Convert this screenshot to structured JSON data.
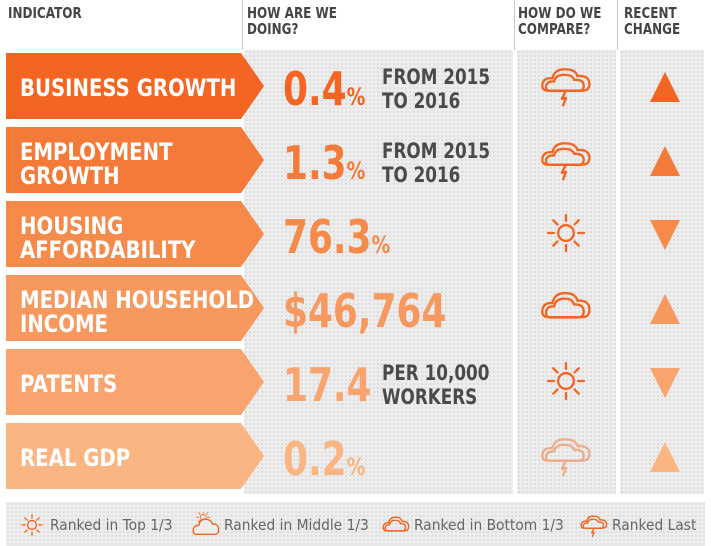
{
  "headers": {
    "indicator": "INDICATOR",
    "how_doing": [
      "HOW ARE WE",
      "DOING?"
    ],
    "how_compare": [
      "HOW DO WE",
      "COMPARE?"
    ],
    "recent_change": [
      "RECENT",
      "CHANGE"
    ]
  },
  "rows": [
    {
      "label": [
        "BUSINESS GROWTH"
      ],
      "value": "0.4",
      "unit": "%",
      "note": [
        "FROM 2015",
        "TO 2016"
      ],
      "compare": "ranked-last-icon",
      "change": "up",
      "color": "#f26522"
    },
    {
      "label": [
        "EMPLOYMENT",
        "GROWTH"
      ],
      "value": "1.3",
      "unit": "%",
      "note": [
        "FROM 2015",
        "TO 2016"
      ],
      "compare": "ranked-last-icon",
      "change": "up",
      "color": "#f47a3a"
    },
    {
      "label": [
        "HOUSING",
        "AFFORDABILITY"
      ],
      "value": "76.3",
      "unit": "%",
      "note": [],
      "compare": "ranked-top-third-icon",
      "change": "down",
      "color": "#f58a4b"
    },
    {
      "label": [
        "MEDIAN HOUSEHOLD",
        "INCOME"
      ],
      "value": "$46,764",
      "unit": "",
      "note": [],
      "compare": "ranked-bottom-third-icon",
      "change": "up",
      "color": "#f7985e"
    },
    {
      "label": [
        "PATENTS"
      ],
      "value": "17.4",
      "unit": "",
      "note": [
        "PER 10,000",
        "WORKERS"
      ],
      "compare": "ranked-top-third-icon",
      "change": "down",
      "color": "#f9a46f"
    },
    {
      "label": [
        "REAL GDP"
      ],
      "value": "0.2",
      "unit": "%",
      "note": [],
      "compare": "ranked-last-icon",
      "change": "up",
      "color": "#fbb583"
    }
  ],
  "legend": [
    {
      "icon": "ranked-top-third-icon",
      "label": "Ranked in Top 1/3"
    },
    {
      "icon": "ranked-middle-third-icon",
      "label": "Ranked in Middle 1/3"
    },
    {
      "icon": "ranked-bottom-third-icon",
      "label": "Ranked in Bottom 1/3"
    },
    {
      "icon": "ranked-last-icon",
      "label": "Ranked Last"
    }
  ],
  "colors": {
    "icon_stroke": "#f26522",
    "text_dark": "#4a4a4a",
    "header": "#444444"
  }
}
